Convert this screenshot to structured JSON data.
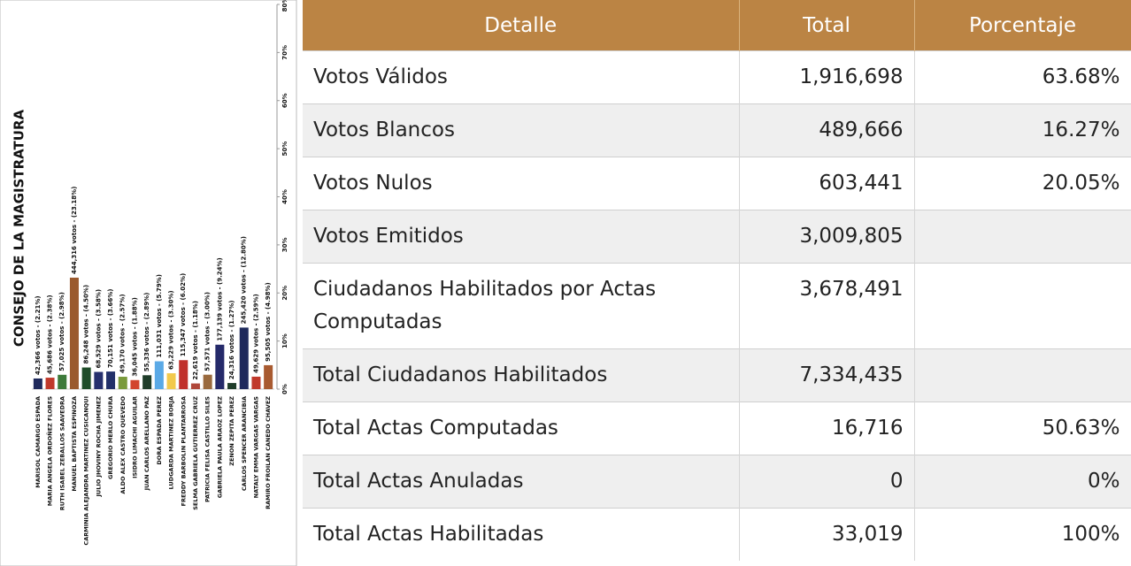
{
  "chart_data": {
    "type": "bar",
    "title": "CONSEJO DE LA MAGISTRATURA",
    "categories": [
      "MARISOL CAMARGO ESPADA",
      "MARIA ANGELA ORDOÑEZ FLORES",
      "RUTH ISABEL ZEBALLOS SAAVEDRA",
      "MANUEL BAPTISTA ESPINOZA",
      "CARMINIA ALEJANDRA MARTINEZ CUSICANQUI",
      "JULIO JHOVINY ROCHA JIMENEZ",
      "GREGORIO MERLO CHURA",
      "ALDO ALEX CASTRO QUEVEDO",
      "ISIDRO LIMACHI AGUILAR",
      "JUAN CARLOS ARELLANO PAZ",
      "DORA ESPADA PEREZ",
      "LUDGARDA MARTINEZ BORJA",
      "FREDDY BARBOLIN PLANTARROSA",
      "SELMA GABRIELA GUTIERREZ CRUZ",
      "PATRICIA FELISA CASTILLO SILES",
      "GABRIELA PAULA ARAOZ LOPEZ",
      "ZENON ZEPITA PEREZ",
      "CARLOS SPENCER ARANCIBIA",
      "NATALY EMMA VARGAS VARGAS",
      "RAMIRO FROILAN CANEDO CHAVEZ"
    ],
    "values": [
      2.21,
      2.38,
      2.98,
      23.18,
      4.5,
      3.58,
      3.66,
      2.57,
      1.88,
      2.89,
      5.79,
      3.3,
      6.02,
      1.18,
      3.0,
      9.24,
      1.27,
      12.8,
      2.59,
      4.98
    ],
    "value_labels": [
      "42,366 votos - (2.21%)",
      "45,686 votos - (2.38%)",
      "57,025 votos - (2.98%)",
      "444,316 votos - (23.18%)",
      "86,248 votos - (4.50%)",
      "68,529 votos - (3.58%)",
      "70,151 votos - (3.66%)",
      "49,170 votos - (2.57%)",
      "36,045 votos - (1.88%)",
      "55,336 votos - (2.89%)",
      "111,031 votos - (5.79%)",
      "63,229 votos - (3.30%)",
      "115,347 votos - (6.02%)",
      "22,619 votos - (1.18%)",
      "57,571 votos - (3.00%)",
      "177,139 votos - (9.24%)",
      "24,316 votos - (1.27%)",
      "245,420 votos - (12.80%)",
      "49,629 votos - (2.59%)",
      "95,505 votos - (4.98%)"
    ],
    "colors": [
      "#1f2a5c",
      "#c0392b",
      "#3d7a3a",
      "#9a5a2e",
      "#1f4d2a",
      "#26306e",
      "#22306a",
      "#7a9a3c",
      "#d2452e",
      "#1f3d2a",
      "#5aa9e6",
      "#f2c94c",
      "#c0302b",
      "#b0473a",
      "#9a6a3e",
      "#252a6a",
      "#1f3d2a",
      "#1f2a5c",
      "#c0392b",
      "#a85a30"
    ],
    "ylim": [
      0,
      80
    ],
    "yticks": [
      {
        "value": 0,
        "label": "0%"
      },
      {
        "value": 10,
        "label": "10%"
      },
      {
        "value": 20,
        "label": "20%"
      },
      {
        "value": 30,
        "label": "30%"
      },
      {
        "value": 40,
        "label": "40%"
      },
      {
        "value": 50,
        "label": "50%"
      },
      {
        "value": 60,
        "label": "60%"
      },
      {
        "value": 70,
        "label": "70%"
      },
      {
        "value": 80,
        "label": "80%"
      }
    ]
  },
  "table": {
    "header": [
      "Detalle",
      "Total",
      "Porcentaje"
    ],
    "rows": [
      [
        "Votos Válidos",
        "1,916,698",
        "63.68%"
      ],
      [
        "Votos Blancos",
        "489,666",
        "16.27%"
      ],
      [
        "Votos Nulos",
        "603,441",
        "20.05%"
      ],
      [
        "Votos Emitidos",
        "3,009,805"
      ],
      [
        "Ciudadanos Habilitados por Actas Computadas",
        "3,678,491"
      ],
      [
        "Total Ciudadanos Habilitados",
        "7,334,435"
      ],
      [
        "Total Actas Computadas",
        "16,716",
        "50.63%"
      ],
      [
        "Total Actas Anuladas",
        "0",
        "0%"
      ],
      [
        "Total Actas Habilitadas",
        "33,019",
        "100%"
      ]
    ]
  }
}
